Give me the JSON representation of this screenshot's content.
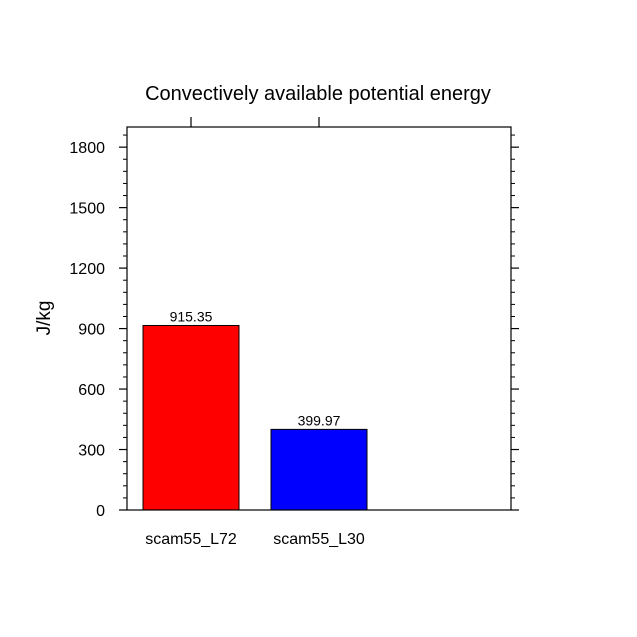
{
  "chart_data": {
    "type": "bar",
    "title": "Convectively available potential energy",
    "xlabel": "",
    "ylabel": "J/kg",
    "categories": [
      "scam55_L72",
      "scam55_L30"
    ],
    "values": [
      915.35,
      399.97
    ],
    "value_labels": [
      "915.35",
      "399.97"
    ],
    "colors": [
      "#ff0000",
      "#0000ff"
    ],
    "ylim": [
      0,
      1900
    ],
    "yticks": [
      0,
      300,
      600,
      900,
      1200,
      1500,
      1800
    ],
    "ytick_labels": [
      "0",
      "300",
      "600",
      "900",
      "1200",
      "1500",
      "1800"
    ],
    "yminor_step": 60,
    "x_slots": 3,
    "grid": false
  }
}
